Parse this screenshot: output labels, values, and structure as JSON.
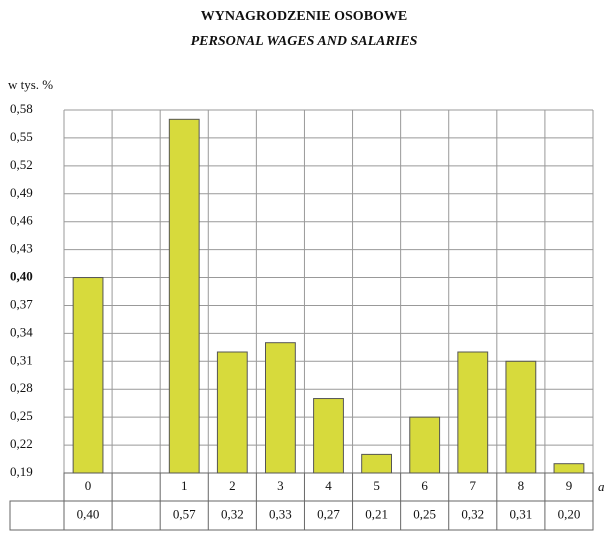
{
  "chart_data": {
    "type": "bar",
    "title": "WYNAGRODZENIE OSOBOWE",
    "subtitle": "PERSONAL WAGES AND SALARIES",
    "y_label": "w tys. %",
    "x_label": "a",
    "categories": [
      "0",
      null,
      "1",
      "2",
      "3",
      "4",
      "5",
      "6",
      "7",
      "8",
      "9"
    ],
    "values": [
      0.4,
      null,
      0.57,
      0.32,
      0.33,
      0.27,
      0.21,
      0.25,
      0.32,
      0.31,
      0.2
    ],
    "value_labels": [
      "0,40",
      null,
      "0,57",
      "0,32",
      "0,33",
      "0,27",
      "0,21",
      "0,25",
      "0,32",
      "0,31",
      "0,20"
    ],
    "color": "#d7da3c",
    "ylim": [
      0.19,
      0.58
    ],
    "yticks": [
      {
        "value": 0.19,
        "label": "0,19"
      },
      {
        "value": 0.22,
        "label": "0,22"
      },
      {
        "value": 0.25,
        "label": "0,25"
      },
      {
        "value": 0.28,
        "label": "0,28"
      },
      {
        "value": 0.31,
        "label": "0,31"
      },
      {
        "value": 0.34,
        "label": "0,34"
      },
      {
        "value": 0.37,
        "label": "0,37"
      },
      {
        "value": 0.4,
        "label": "0,40",
        "bold": true
      },
      {
        "value": 0.43,
        "label": "0,43"
      },
      {
        "value": 0.46,
        "label": "0,46"
      },
      {
        "value": 0.49,
        "label": "0,49"
      },
      {
        "value": 0.52,
        "label": "0,52"
      },
      {
        "value": 0.55,
        "label": "0,55"
      },
      {
        "value": 0.58,
        "label": "0,58"
      }
    ],
    "grid": true
  }
}
